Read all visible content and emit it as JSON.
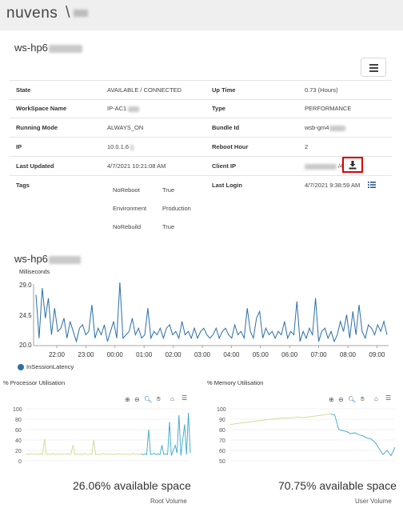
{
  "brand": {
    "name": "nuvens",
    "separator": "\\"
  },
  "workspace": {
    "title": "ws-hp6"
  },
  "details": {
    "state_label": "State",
    "state_value": "AVAILABLE / CONNECTED",
    "workspace_name_label": "WorkSpace Name",
    "workspace_name_value": "IP-AC1",
    "running_mode_label": "Running Mode",
    "running_mode_value": "ALWAYS_ON",
    "ip_label": "IP",
    "ip_value": "10.0.1.6",
    "last_updated_label": "Last Updated",
    "last_updated_value": "4/7/2021 10:21:08 AM",
    "tags_label": "Tags",
    "uptime_label": "Up Time",
    "uptime_value": "0.73 (Hours)",
    "type_label": "Type",
    "type_value": "PERFORMANCE",
    "bundle_label": "Bundle Id",
    "bundle_value": "wsb-gm4",
    "reboot_label": "Reboot Hour",
    "reboot_value": "2",
    "client_ip_label": "Client IP",
    "client_ip_value": "/47",
    "last_login_label": "Last Login",
    "last_login_value": "4/7/2021 9:38:59 AM"
  },
  "tags": [
    {
      "key": "NoReboot",
      "value": "True"
    },
    {
      "key": "Environment",
      "value": "Production"
    },
    {
      "key": "NoRebuild",
      "value": "True"
    }
  ],
  "latency_chart": {
    "title": "ws-hp6",
    "ylabel": "Milliseconds",
    "legend": "InSessionLatency",
    "color": "#2b6fa8",
    "y_ticks": [
      "29.0",
      "24.5",
      "20.0"
    ],
    "x_ticks": [
      "22:00",
      "23:00",
      "00:00",
      "01:00",
      "02:00",
      "03:00",
      "04:00",
      "05:00",
      "06:00",
      "07:00",
      "08:00",
      "09:00"
    ]
  },
  "cpu_chart": {
    "title": "% Processor Utilisation",
    "y_ticks": [
      "100",
      "80",
      "60",
      "40",
      "20",
      "0"
    ],
    "available_text": "26.06% available space",
    "volume": "Root Volume"
  },
  "mem_chart": {
    "title": "% Memory Utilisation",
    "y_ticks": [
      "100",
      "90",
      "80",
      "70",
      "60",
      "50"
    ],
    "available_text": "70.75% available space",
    "volume": "User Volume"
  },
  "chart_data": [
    {
      "type": "line",
      "title": "ws-hp6",
      "ylabel": "Milliseconds",
      "xlabel": "",
      "ylim": [
        20.0,
        29.0
      ],
      "x_ticks": [
        "22:00",
        "23:00",
        "00:00",
        "01:00",
        "02:00",
        "03:00",
        "04:00",
        "05:00",
        "06:00",
        "07:00",
        "08:00",
        "09:00"
      ],
      "series": [
        {
          "name": "InSessionLatency",
          "values": [
            27.5,
            21.0,
            28.5,
            24.0,
            27.0,
            21.5,
            25.5,
            22.0,
            22.5,
            24.0,
            21.0,
            23.5,
            22.0,
            20.5,
            22.5,
            23.0,
            21.5,
            22.0,
            26.0,
            21.0,
            22.5,
            21.5,
            23.0,
            20.5,
            22.0,
            23.5,
            21.0,
            29.5,
            21.0,
            21.5,
            22.0,
            24.0,
            21.5,
            22.5,
            21.0,
            21.5,
            25.5,
            21.0,
            22.0,
            21.5,
            22.5,
            21.0,
            22.5,
            23.0,
            21.5,
            22.0,
            21.0,
            23.5,
            21.5,
            22.0,
            21.0,
            22.5,
            21.0,
            22.0,
            22.5,
            21.5,
            21.0,
            21.5,
            22.5,
            21.0,
            22.0,
            22.5,
            21.5,
            21.0,
            23.0,
            21.5,
            22.0,
            21.0,
            25.5,
            22.0,
            21.0,
            24.0,
            25.0,
            21.0,
            22.5,
            21.5,
            22.0,
            21.0,
            22.0,
            21.5,
            23.5,
            21.0,
            22.0,
            21.5,
            26.5,
            20.5,
            22.0,
            21.0,
            22.5,
            21.5,
            27.0,
            20.5,
            22.0,
            22.5,
            21.0,
            22.0,
            20.5,
            21.5,
            23.5,
            22.0,
            24.5,
            21.0,
            25.0,
            21.5,
            26.0,
            22.0,
            21.0,
            23.0,
            22.5,
            21.5,
            23.0,
            22.0,
            23.5,
            21.5
          ]
        }
      ]
    },
    {
      "type": "line",
      "title": "% Processor Utilisation",
      "ylim": [
        0,
        100
      ],
      "series": [
        {
          "name": "",
          "values": [
            12,
            13,
            12,
            14,
            13,
            12,
            13,
            12,
            14,
            12,
            42,
            12,
            13,
            12,
            14,
            13,
            12,
            13,
            12,
            13,
            12,
            13,
            14,
            12,
            13,
            30,
            12,
            13,
            12,
            13,
            12,
            14,
            13,
            12,
            13,
            12,
            40,
            12,
            13,
            12,
            13,
            14,
            12,
            13,
            12,
            13,
            12,
            13,
            12,
            14,
            13,
            12,
            13,
            12,
            13,
            12,
            13,
            14,
            12,
            13,
            12,
            13,
            12,
            13,
            12,
            60,
            12,
            13,
            14,
            12,
            13,
            12,
            30,
            12,
            13,
            12,
            75,
            10,
            20,
            30,
            15,
            88,
            10,
            40,
            70,
            12,
            92,
            15
          ]
        }
      ]
    },
    {
      "type": "line",
      "title": "% Memory Utilisation",
      "ylim": [
        50,
        100
      ],
      "series": [
        {
          "name": "",
          "values": [
            85,
            85.5,
            86,
            86.5,
            87,
            87.5,
            88,
            88.5,
            89,
            89.5,
            90,
            90.3,
            90.6,
            91,
            91,
            91.3,
            91.6,
            92,
            91.5,
            92,
            92.5,
            93,
            93.5,
            94,
            94.5,
            95,
            94,
            80,
            79,
            78,
            76,
            77,
            75,
            74,
            72,
            71,
            68,
            62,
            56,
            60,
            55,
            63
          ]
        }
      ]
    }
  ]
}
